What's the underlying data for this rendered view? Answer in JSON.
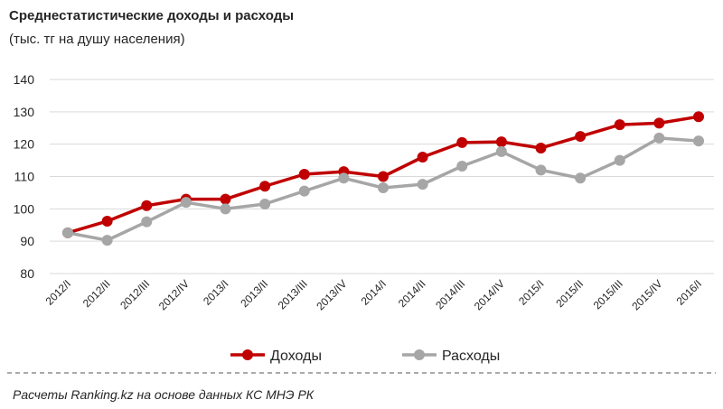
{
  "chart_data": {
    "type": "line",
    "title": "Среднестатистические  доходы и расходы",
    "subtitle": "(тыс. тг на душу  населения)",
    "source": "Расчеты Ranking.kz на основе данных КС МНЭ РК",
    "categories": [
      "2012/I",
      "2012/II",
      "2012/III",
      "2012/IV",
      "2013/I",
      "2013/II",
      "2013/III",
      "2013/IV",
      "2014/I",
      "2014/II",
      "2014/III",
      "2014/IV",
      "2015/I",
      "2015/II",
      "2015/III",
      "2015/IV",
      "2016/I"
    ],
    "series": [
      {
        "name": "Доходы",
        "color": "#c00000",
        "values": [
          92.6,
          96.2,
          101,
          103,
          103,
          107,
          110.7,
          111.5,
          110,
          116,
          120.5,
          120.7,
          118.8,
          122.4,
          126,
          126.5,
          128.5
        ]
      },
      {
        "name": "Расходы",
        "color": "#a6a6a6",
        "values": [
          92.6,
          90.3,
          96,
          102,
          100,
          101.5,
          105.5,
          109.5,
          106.5,
          107.6,
          113.2,
          117.7,
          112,
          109.5,
          115,
          121.9,
          121
        ]
      }
    ],
    "ylim": [
      80,
      140
    ],
    "yticks": [
      80,
      90,
      100,
      110,
      120,
      130,
      140
    ],
    "grid": true,
    "legend": "bottom"
  }
}
